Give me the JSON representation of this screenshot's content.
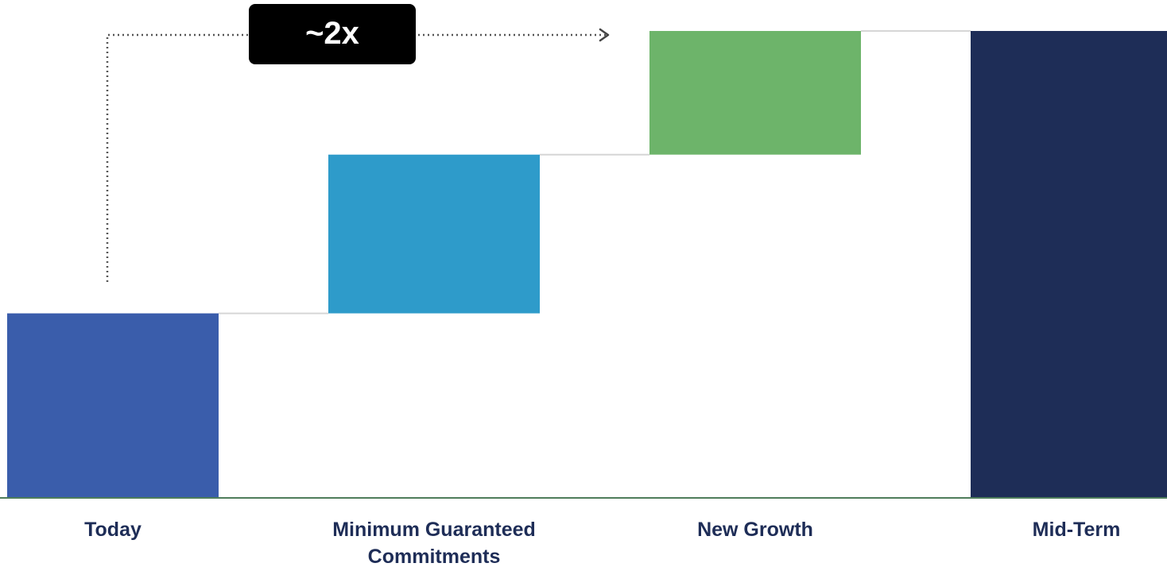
{
  "chart_data": {
    "type": "bar",
    "subtype": "waterfall",
    "title": "",
    "xlabel": "",
    "ylabel": "",
    "categories": [
      "Today",
      "Minimum Guaranteed Commitments",
      "New Growth",
      "Mid-Term"
    ],
    "category_label_lines": [
      [
        "Today"
      ],
      [
        "Minimum Guaranteed",
        "Commitments"
      ],
      [
        "New Growth"
      ],
      [
        "Mid-Term"
      ]
    ],
    "bars": [
      {
        "category": "Today",
        "kind": "total",
        "base": 0,
        "value": 1.0,
        "color": "#3a5dab"
      },
      {
        "category": "Minimum Guaranteed Commitments",
        "kind": "increase",
        "base": 1.0,
        "value": 0.86,
        "color": "#2e9bca"
      },
      {
        "category": "New Growth",
        "kind": "increase",
        "base": 1.86,
        "value": 0.67,
        "color": "#6db46a"
      },
      {
        "category": "Mid-Term",
        "kind": "total",
        "base": 0,
        "value": 2.53,
        "color": "#1e2d57"
      }
    ],
    "ylim": [
      0,
      2.7
    ],
    "grid": false,
    "legend": "none",
    "annotation": {
      "text": "~2x",
      "from": "Today",
      "to": "New Growth",
      "color": "#000000",
      "text_color": "#ffffff"
    },
    "connector_color": "#d6d6d6",
    "baseline_color": "#4e7d5b",
    "label_color": "#1e2d57"
  }
}
